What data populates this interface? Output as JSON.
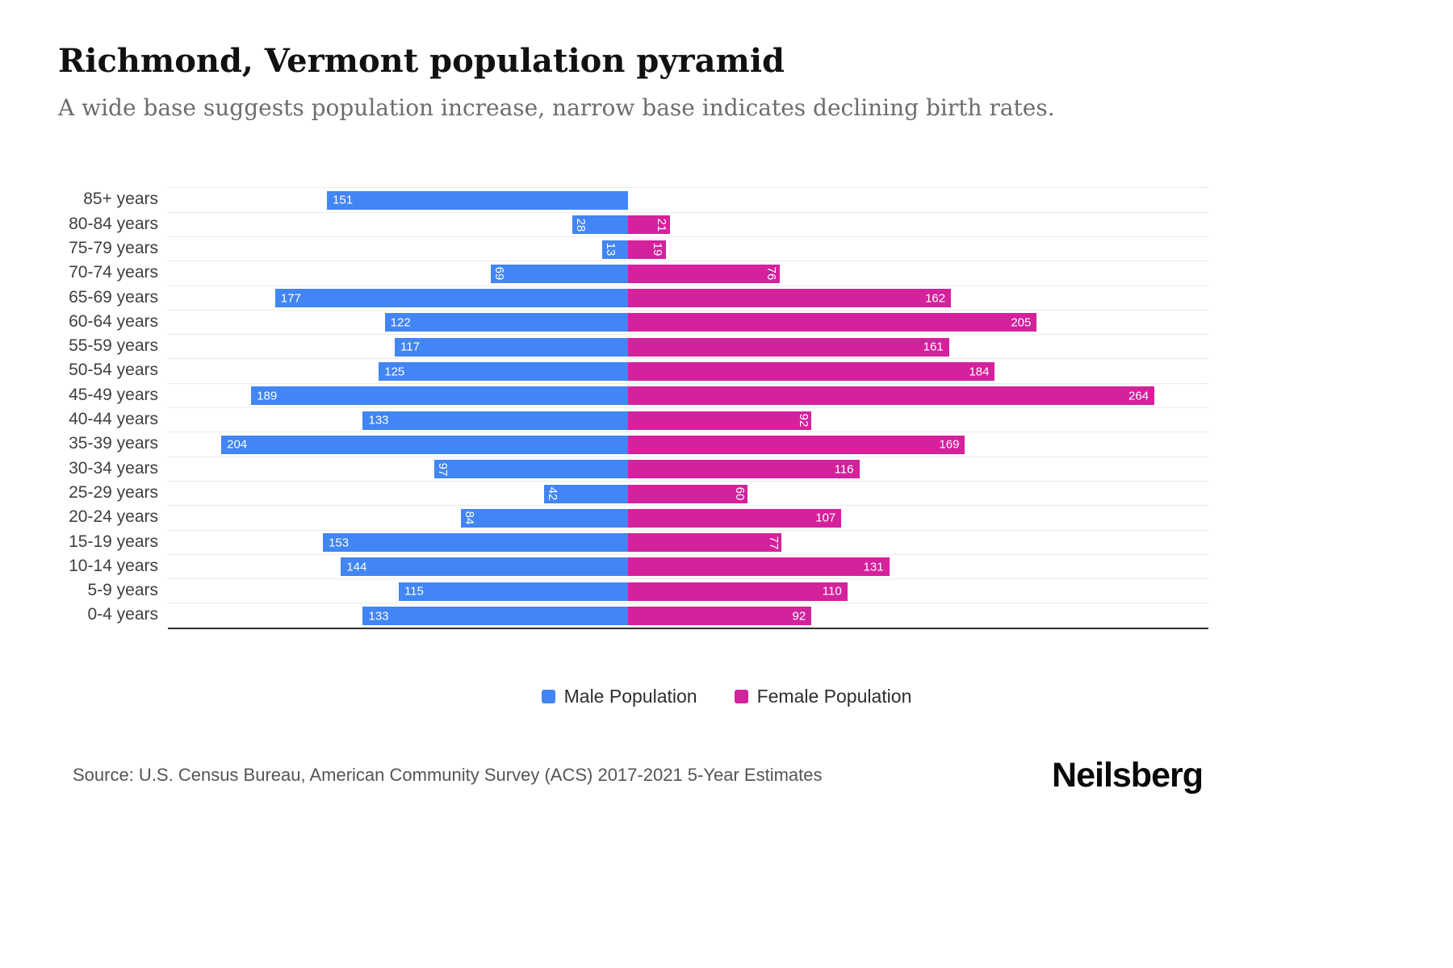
{
  "title": "Richmond, Vermont population pyramid",
  "subtitle": "A wide base suggests population increase, narrow base indicates declining birth rates.",
  "source": "Source: U.S. Census Bureau, American Community Survey (ACS) 2017-2021 5-Year Estimates",
  "brand": "Neilsberg",
  "legend": {
    "male_label": "Male Population",
    "female_label": "Female Population"
  },
  "colors": {
    "male": "#4285f4",
    "female": "#d4219c",
    "grid": "#ebebeb",
    "axis": "#2f2f2f"
  },
  "chart_data": {
    "type": "bar",
    "subtype": "population_pyramid",
    "orientation": "horizontal",
    "title": "Richmond, Vermont population pyramid",
    "categories": [
      "85+ years",
      "80-84 years",
      "75-79 years",
      "70-74 years",
      "65-69 years",
      "60-64 years",
      "55-59 years",
      "50-54 years",
      "45-49 years",
      "40-44 years",
      "35-39 years",
      "30-34 years",
      "25-29 years",
      "20-24 years",
      "15-19 years",
      "10-14 years",
      "5-9 years",
      "0-4 years"
    ],
    "series": [
      {
        "name": "Male Population",
        "side": "left",
        "color": "#4285f4",
        "values": [
          151,
          28,
          13,
          69,
          177,
          122,
          117,
          125,
          189,
          133,
          204,
          97,
          42,
          84,
          153,
          144,
          115,
          133
        ],
        "label_rotated": [
          false,
          true,
          true,
          true,
          false,
          false,
          false,
          false,
          false,
          false,
          false,
          true,
          true,
          true,
          false,
          false,
          false,
          false
        ]
      },
      {
        "name": "Female Population",
        "side": "right",
        "color": "#d4219c",
        "values": [
          0,
          21,
          19,
          76,
          162,
          205,
          161,
          184,
          264,
          92,
          169,
          116,
          60,
          107,
          77,
          131,
          110,
          92
        ],
        "label_rotated": [
          false,
          true,
          true,
          true,
          false,
          false,
          false,
          false,
          false,
          true,
          false,
          false,
          true,
          false,
          true,
          false,
          false,
          false
        ]
      }
    ],
    "value_labels": "inside-outer-end",
    "x_tick_labels": false,
    "grid": true,
    "legend_position": "bottom"
  }
}
